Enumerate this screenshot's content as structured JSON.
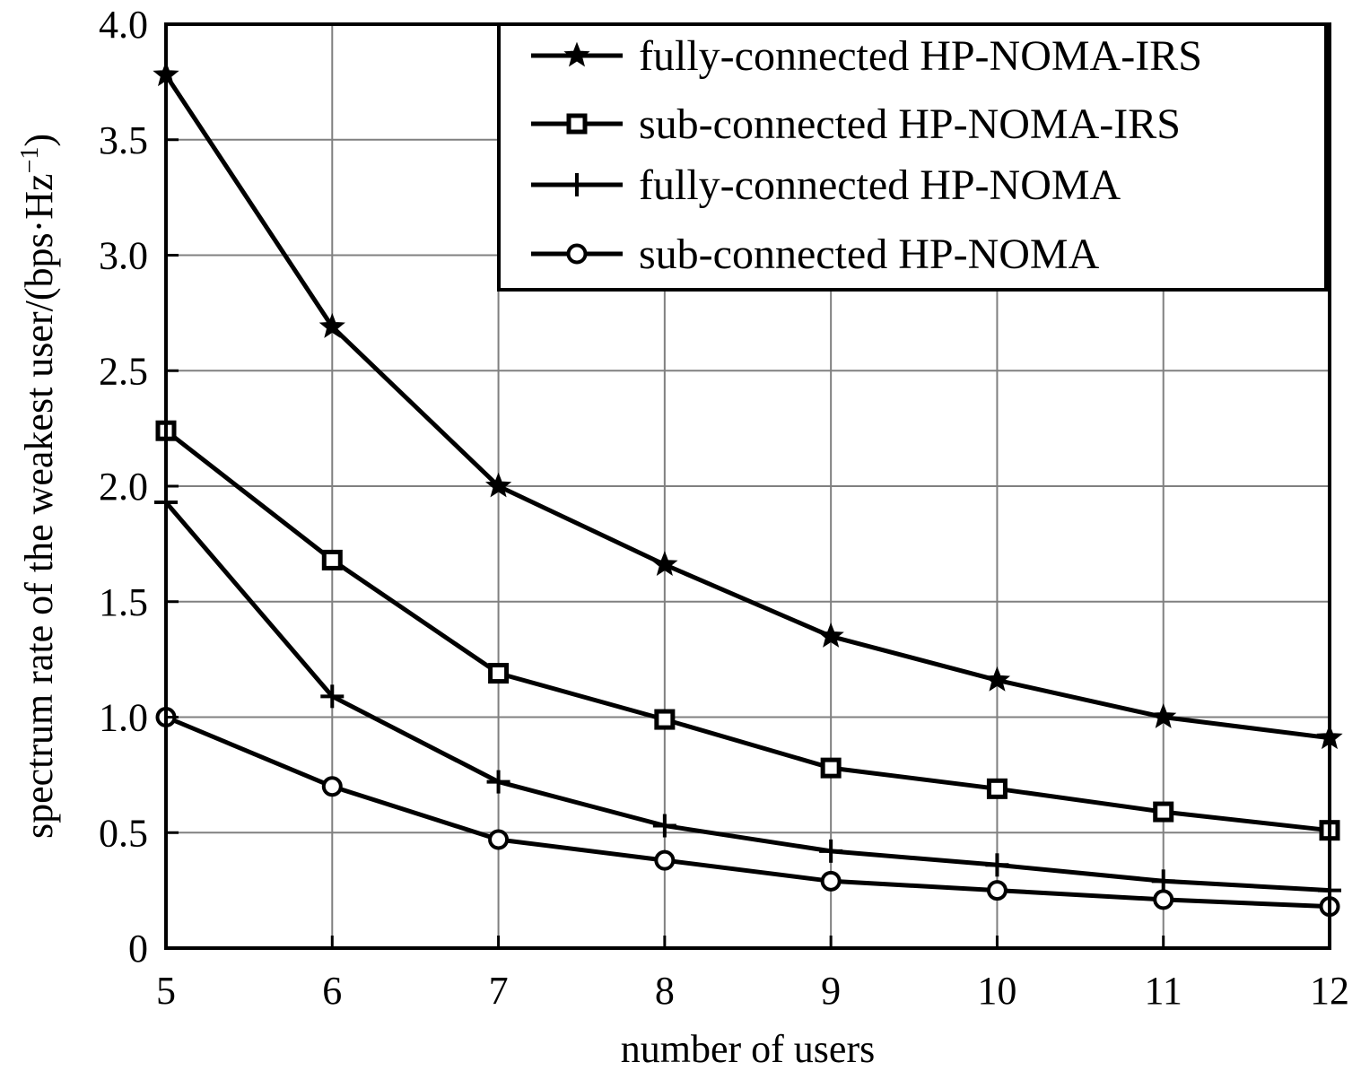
{
  "chart_data": {
    "type": "line",
    "xlabel": "number of users",
    "ylabel": "spectrum rate of the weakest user/(bps·Hz",
    "ylabel_superscript": "−1",
    "ylabel_close": ")",
    "x": [
      5,
      6,
      7,
      8,
      9,
      10,
      11,
      12
    ],
    "xlim": [
      5,
      12
    ],
    "ylim": [
      0,
      4.0
    ],
    "xticks": [
      "5",
      "6",
      "7",
      "8",
      "9",
      "10",
      "11",
      "12"
    ],
    "yticks": [
      "0",
      "0.5",
      "1.0",
      "1.5",
      "2.0",
      "2.5",
      "3.0",
      "3.5",
      "4.0"
    ],
    "grid": true,
    "legend_position": "top-right",
    "series": [
      {
        "name": "fully-connected HP-NOMA-IRS",
        "marker": "star",
        "values": [
          3.78,
          2.69,
          2.0,
          1.66,
          1.35,
          1.16,
          1.0,
          0.91
        ]
      },
      {
        "name": "sub-connected HP-NOMA-IRS",
        "marker": "square",
        "values": [
          2.24,
          1.68,
          1.19,
          0.99,
          0.78,
          0.69,
          0.59,
          0.51
        ]
      },
      {
        "name": "fully-connected HP-NOMA",
        "marker": "plus",
        "values": [
          1.93,
          1.09,
          0.72,
          0.53,
          0.42,
          0.36,
          0.29,
          0.25
        ]
      },
      {
        "name": "sub-connected HP-NOMA",
        "marker": "circle",
        "values": [
          1.0,
          0.7,
          0.47,
          0.38,
          0.29,
          0.25,
          0.21,
          0.18
        ]
      }
    ],
    "colors": {
      "line": "#000000",
      "grid": "#808080",
      "background": "#ffffff"
    }
  }
}
